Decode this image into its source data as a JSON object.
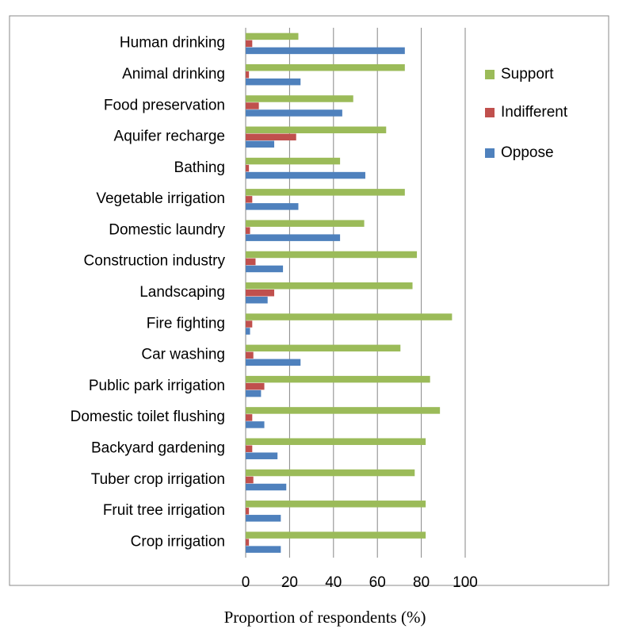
{
  "chart_data": {
    "type": "bar",
    "orientation": "horizontal",
    "x_label": "Proportion of respondents (%)",
    "categories": [
      "Human drinking",
      "Animal drinking",
      "Food preservation",
      "Aquifer recharge",
      "Bathing",
      "Vegetable irrigation",
      "Domestic laundry",
      "Construction industry",
      "Landscaping",
      "Fire fighting",
      "Car washing",
      "Public park irrigation",
      "Domestic toilet flushing",
      "Backyard gardening",
      "Tuber crop irrigation",
      "Fruit tree irrigation",
      "Crop irrigation"
    ],
    "series": [
      {
        "name": "Support",
        "color": "#9bbb59",
        "values": [
          24,
          72.5,
          49,
          64,
          43,
          72.5,
          54,
          78,
          76,
          94,
          70.5,
          84,
          88.5,
          82,
          77,
          82,
          82
        ]
      },
      {
        "name": "Indifferent",
        "color": "#c0504d",
        "values": [
          3,
          1.5,
          6,
          23,
          1.5,
          3,
          2,
          4.5,
          13,
          3,
          3.5,
          8.5,
          3,
          3,
          3.5,
          1.5,
          1.5
        ]
      },
      {
        "name": "Oppose",
        "color": "#4f81bd",
        "values": [
          72.5,
          25,
          44,
          13,
          54.5,
          24,
          43,
          17,
          10,
          2,
          25,
          7,
          8.5,
          14.5,
          18.5,
          16,
          16
        ]
      }
    ],
    "xlim": [
      0,
      100
    ],
    "xticks": [
      0,
      20,
      40,
      60,
      80,
      100
    ],
    "grid": true
  }
}
